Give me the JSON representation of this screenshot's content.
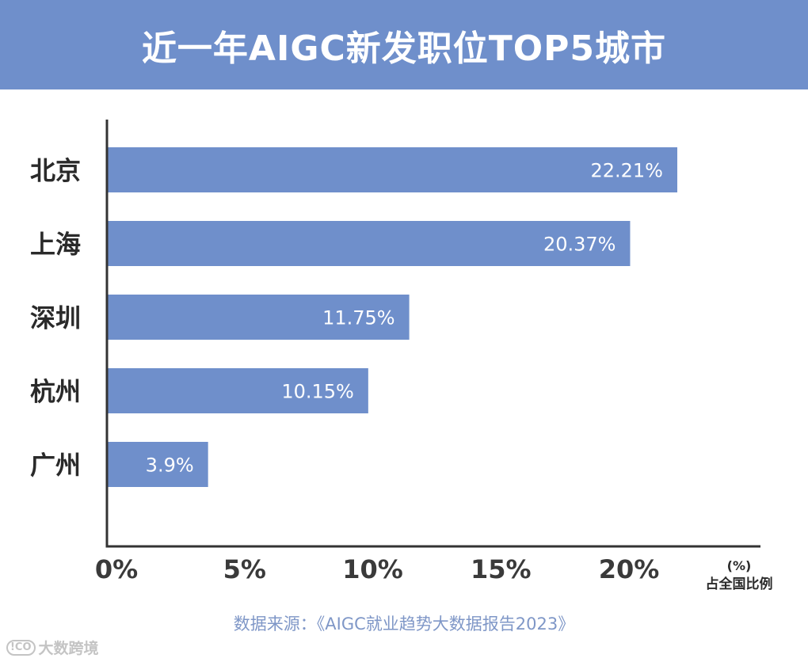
{
  "header": {
    "title": "近一年AIGC新发职位TOP5城市"
  },
  "chart_data": {
    "type": "bar",
    "orientation": "horizontal",
    "title": "近一年AIGC新发职位TOP5城市",
    "categories": [
      "北京",
      "上海",
      "深圳",
      "杭州",
      "广州"
    ],
    "values": [
      22.21,
      20.37,
      11.75,
      10.15,
      3.9
    ],
    "value_labels": [
      "22.21%",
      "20.37%",
      "11.75%",
      "10.15%",
      "3.9%"
    ],
    "x_ticks": [
      0,
      5,
      10,
      15,
      20
    ],
    "x_tick_labels": [
      "0%",
      "5%",
      "10%",
      "15%",
      "20%"
    ],
    "xlim": [
      0,
      25
    ],
    "x_unit": "(%)",
    "xlabel": "占全国比例",
    "grid": false,
    "bar_color": "#6f8fcb"
  },
  "source": {
    "text": "数据来源：《AIGC就业趋势大数据报告2023》"
  },
  "watermark": {
    "icon_text": "!CO",
    "text": "大数跨境"
  }
}
